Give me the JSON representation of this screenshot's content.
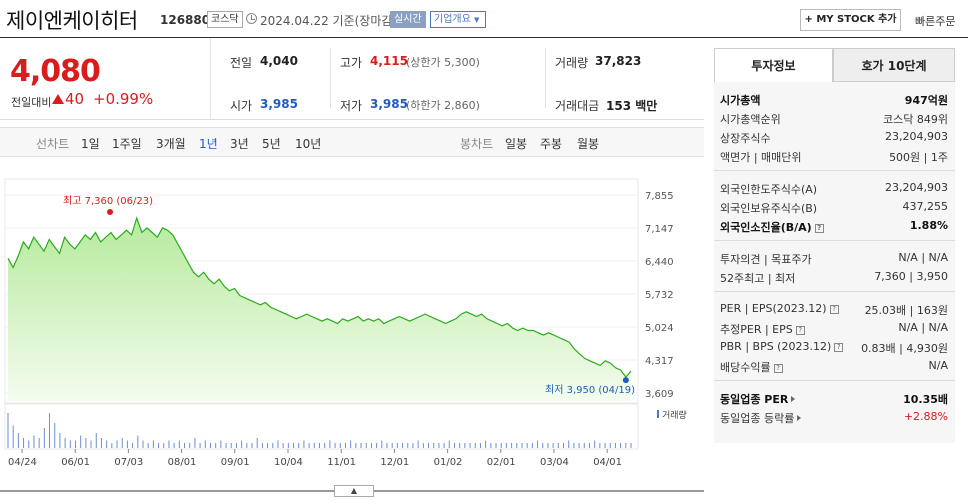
{
  "header": {
    "stock_name": "제이엔케이히터",
    "stock_code": "126880",
    "market": "코스닥",
    "date_text": "2024.04.22 기준(장마감)",
    "live_label": "실시간",
    "company_summary_label": "기업개요",
    "my_stock_label": "MY STOCK 추가",
    "quick_order_label": "빠른주문"
  },
  "price": {
    "current": "4,080",
    "change_label": "전일대비",
    "change_value": "40",
    "change_pct": "+0.99%",
    "up_color": "#d91c1c",
    "down_color": "#1d5cc0"
  },
  "quote": {
    "prev_close_label": "전일",
    "prev_close": "4,040",
    "open_label": "시가",
    "open": "3,985",
    "high_label": "고가",
    "high": "4,115",
    "high_limit": "(상한가 5,300)",
    "low_label": "저가",
    "low": "3,985",
    "low_limit": "(하한가 2,860)",
    "volume_label": "거래량",
    "volume": "37,823",
    "amount_label": "거래대금",
    "amount": "153 백만"
  },
  "tabs": {
    "line_label": "선차트",
    "line_periods": [
      "1일",
      "1주일",
      "3개월",
      "1년",
      "3년",
      "5년",
      "10년"
    ],
    "selected": "1년",
    "candle_label": "봉차트",
    "candle_periods": [
      "일봉",
      "주봉",
      "월봉"
    ]
  },
  "chart_data": {
    "type": "area",
    "y_ticks": [
      "7,855",
      "7,147",
      "6,440",
      "5,732",
      "5,024",
      "4,317",
      "3,609"
    ],
    "ylim": [
      3609,
      7855
    ],
    "x_ticks": [
      "04/24",
      "06/01",
      "07/03",
      "08/01",
      "09/01",
      "10/04",
      "11/01",
      "12/01",
      "01/02",
      "02/01",
      "03/04",
      "04/01"
    ],
    "high_annotation": "최고 7,360 (06/23)",
    "low_annotation": "최저 3,950 (04/19)",
    "volume_label": "거래량",
    "series": [
      {
        "values": [
          6500,
          6300,
          6550,
          6850,
          6700,
          6950,
          6800,
          6650,
          6900,
          6750,
          6600,
          6950,
          6800,
          6700,
          6850,
          7000,
          6900,
          7050,
          6850,
          6950,
          7050,
          6900,
          7000,
          7100,
          7000,
          7360,
          7050,
          7150,
          7050,
          6950,
          7150,
          7100,
          7000,
          6800,
          6600,
          6400,
          6200,
          6100,
          6200,
          6050,
          5950,
          6050,
          5900,
          5800,
          5850,
          5700,
          5650,
          5600,
          5550,
          5500,
          5550,
          5450,
          5400,
          5350,
          5300,
          5250,
          5200,
          5250,
          5300,
          5250,
          5200,
          5150,
          5200,
          5150,
          5100,
          5200,
          5150,
          5200,
          5250,
          5150,
          5200,
          5150,
          5200,
          5100,
          5150,
          5200,
          5250,
          5200,
          5150,
          5200,
          5250,
          5300,
          5250,
          5200,
          5150,
          5100,
          5150,
          5200,
          5300,
          5350,
          5300,
          5250,
          5300,
          5200,
          5150,
          5100,
          5050,
          5100,
          5000,
          4950,
          5000,
          4950,
          4950,
          4900,
          4850,
          4900,
          4850,
          4800,
          4750,
          4700,
          4550,
          4450,
          4350,
          4300,
          4250,
          4200,
          4300,
          4250,
          4150,
          4100,
          3950,
          4080
        ],
        "color": "#2bab1c",
        "fill": "#c8f0b8"
      }
    ]
  },
  "right": {
    "tab_invest": "투자정보",
    "tab_hoga": "호가 10단계",
    "rows1": [
      {
        "l": "시가총액",
        "r": "947억원",
        "bold": true
      },
      {
        "l": "시가총액순위",
        "r": "코스닥 849위"
      },
      {
        "l": "상장주식수",
        "r": "23,204,903"
      },
      {
        "l": "액면가 | 매매단위",
        "r": "500원 | 1주"
      }
    ],
    "rows2": [
      {
        "l": "외국인한도주식수(A)",
        "r": "23,204,903"
      },
      {
        "l": "외국인보유주식수(B)",
        "r": "437,255"
      },
      {
        "l": "외국인소진율(B/A)",
        "r": "1.88%",
        "bold": true
      }
    ],
    "rows3": [
      {
        "l": "투자의견 | 목표주가",
        "r": "N/A | N/A"
      },
      {
        "l": "52주최고 | 최저",
        "r": "7,360 | 3,950"
      }
    ],
    "rows4": [
      {
        "l": "PER | EPS(2023.12)",
        "r": "25.03배 | 163원"
      },
      {
        "l": "추정PER | EPS",
        "r": "N/A | N/A"
      },
      {
        "l": "PBR | BPS (2023.12)",
        "r": "0.83배 | 4,930원"
      },
      {
        "l": "배당수익률",
        "r": "N/A"
      }
    ],
    "rows5": [
      {
        "l": "동일업종 PER",
        "r": "10.35배",
        "bold": true
      },
      {
        "l": "동일업종 등락률",
        "r": "+2.88%"
      }
    ]
  }
}
